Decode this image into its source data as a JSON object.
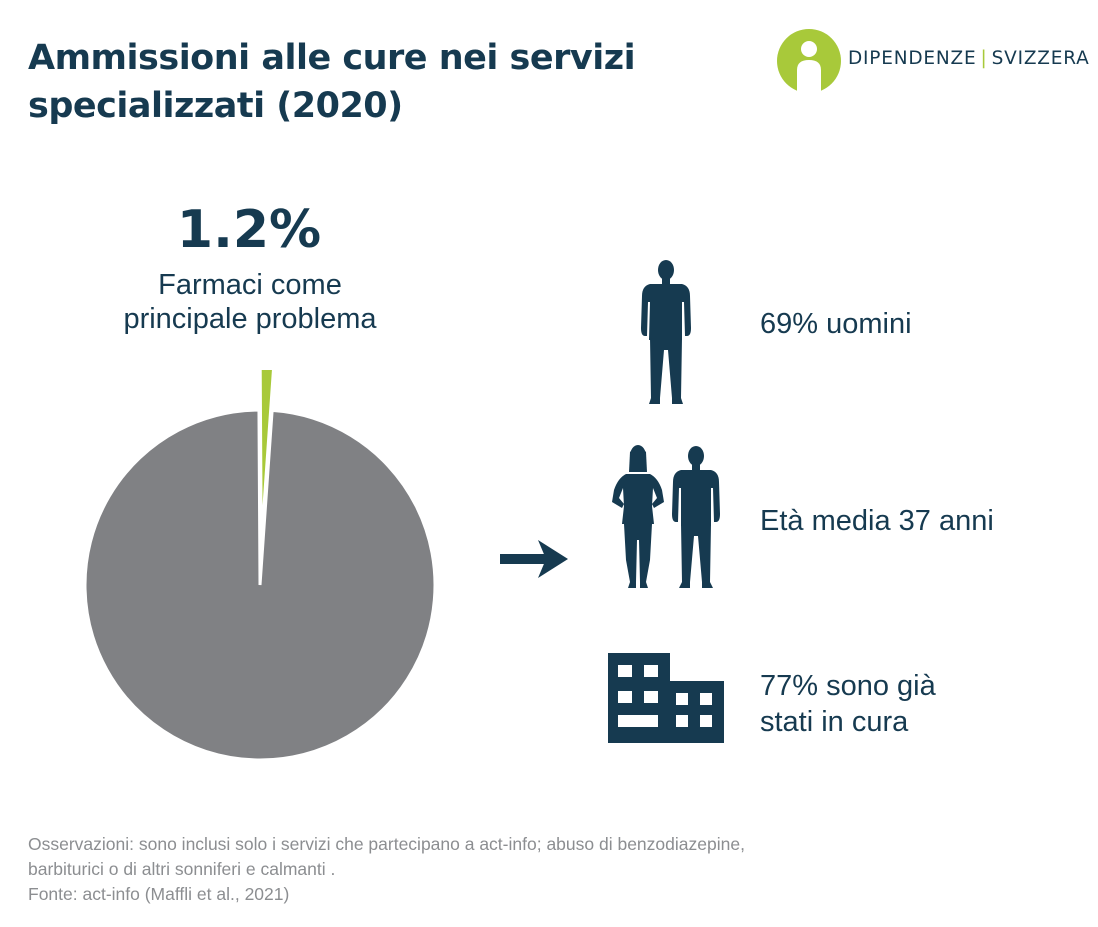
{
  "title": {
    "line1": "Ammissioni alle cure nei servizi",
    "line2": "specializzati (2020)"
  },
  "logo": {
    "left": "DIPENDENZE",
    "separator": "|",
    "right": "SVIZZERA"
  },
  "colors": {
    "navy": "#163a50",
    "lime": "#a8c93a",
    "pie_grey": "#808184",
    "note_grey": "#8c8e91"
  },
  "chart_data": {
    "type": "pie",
    "highlight_value": "1.2%",
    "caption_line1": "Farmaci come",
    "caption_line2": "principale problema",
    "slices": [
      {
        "label": "Farmaci come principale problema",
        "value": 1.2,
        "color": "#a8c93a",
        "exploded": true
      },
      {
        "label": "",
        "value": 98.8,
        "color": "#808184",
        "exploded": false
      }
    ]
  },
  "stats": [
    {
      "icon": "man-silhouette-icon",
      "line1": "69% uomini",
      "line2": ""
    },
    {
      "icon": "woman-and-man-silhouette-icon",
      "line1": "Età media 37 anni",
      "line2": ""
    },
    {
      "icon": "building-icon",
      "line1": "77% sono già",
      "line2": "stati in cura"
    }
  ],
  "notes": {
    "line1": "Osservazioni: sono inclusi solo i servizi che partecipano a act-info; abuso di benzodiazepine,",
    "line2": "barbiturici o di altri sonniferi e calmanti .",
    "line3": "Fonte: act-info (Maffli et al., 2021)"
  }
}
